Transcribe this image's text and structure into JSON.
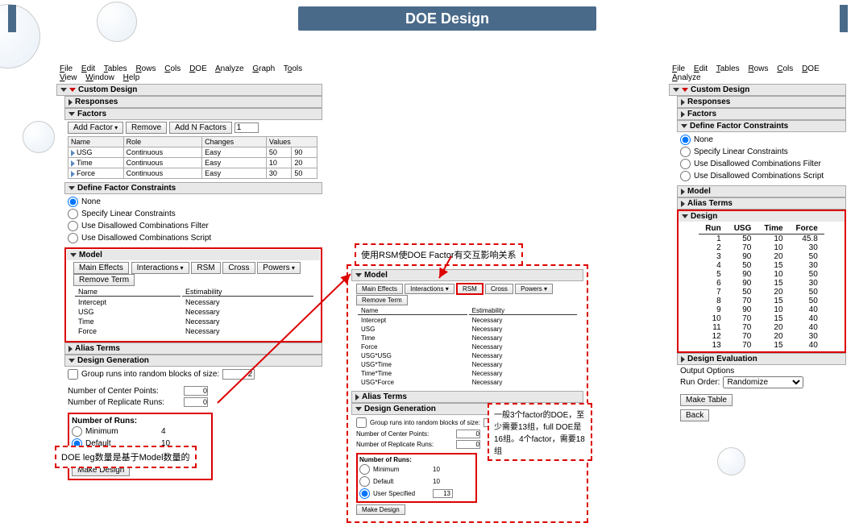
{
  "title": "DOE Design",
  "menu": [
    "File",
    "Edit",
    "Tables",
    "Rows",
    "Cols",
    "DOE",
    "Analyze",
    "Graph",
    "Tools",
    "View",
    "Window",
    "Help"
  ],
  "menu_right": [
    "File",
    "Edit",
    "Tables",
    "Rows",
    "Cols",
    "DOE",
    "Analyze"
  ],
  "sec": {
    "custom_design": "Custom Design",
    "responses": "Responses",
    "factors": "Factors",
    "define_constraints": "Define Factor Constraints",
    "model": "Model",
    "alias": "Alias Terms",
    "design_gen": "Design Generation",
    "design": "Design",
    "design_eval": "Design Evaluation"
  },
  "factors_btns": {
    "add": "Add Factor",
    "remove": "Remove",
    "addn": "Add N Factors",
    "addn_val": "1"
  },
  "factors_cols": [
    "Name",
    "Role",
    "Changes",
    "Values"
  ],
  "factors_rows": [
    {
      "name": "USG",
      "role": "Continuous",
      "changes": "Easy",
      "v1": "50",
      "v2": "90"
    },
    {
      "name": "Time",
      "role": "Continuous",
      "changes": "Easy",
      "v1": "10",
      "v2": "20"
    },
    {
      "name": "Force",
      "role": "Continuous",
      "changes": "Easy",
      "v1": "30",
      "v2": "50"
    }
  ],
  "constraints": {
    "none": "None",
    "linear": "Specify Linear Constraints",
    "filter": "Use Disallowed Combinations Filter",
    "script": "Use Disallowed Combinations Script"
  },
  "model_btns": {
    "main": "Main Effects",
    "inter": "Interactions",
    "rsm": "RSM",
    "cross": "Cross",
    "powers": "Powers",
    "remove": "Remove Term"
  },
  "model_cols": {
    "name": "Name",
    "est": "Estimability"
  },
  "model_rows_left": [
    {
      "name": "Intercept",
      "est": "Necessary"
    },
    {
      "name": "USG",
      "est": "Necessary"
    },
    {
      "name": "Time",
      "est": "Necessary"
    },
    {
      "name": "Force",
      "est": "Necessary"
    }
  ],
  "model_rows_mid": [
    {
      "name": "Intercept",
      "est": "Necessary"
    },
    {
      "name": "USG",
      "est": "Necessary"
    },
    {
      "name": "Time",
      "est": "Necessary"
    },
    {
      "name": "Force",
      "est": "Necessary"
    },
    {
      "name": "USG*USG",
      "est": "Necessary"
    },
    {
      "name": "USG*Time",
      "est": "Necessary"
    },
    {
      "name": "Time*Time",
      "est": "Necessary"
    },
    {
      "name": "USG*Force",
      "est": "Necessary"
    }
  ],
  "design_gen": {
    "group": "Group runs into random blocks of size:",
    "group_val": "2",
    "center": "Number of Center Points:",
    "center_val": "0",
    "replicate": "Number of Replicate Runs:",
    "replicate_val": "0"
  },
  "runs": {
    "title": "Number of Runs:",
    "min": "Minimum",
    "min_v_left": "4",
    "min_v_mid": "10",
    "def": "Default",
    "def_v_left": "10",
    "def_v_mid": "10",
    "user": "User Specified",
    "user_v_left": "10",
    "user_v_mid": "13",
    "make": "Make Design"
  },
  "design_cols": [
    "Run",
    "USG",
    "Time",
    "Force"
  ],
  "design_rows": [
    [
      "1",
      "50",
      "10",
      "45.8"
    ],
    [
      "2",
      "70",
      "10",
      "30"
    ],
    [
      "3",
      "90",
      "20",
      "50"
    ],
    [
      "4",
      "50",
      "15",
      "30"
    ],
    [
      "5",
      "90",
      "10",
      "50"
    ],
    [
      "6",
      "90",
      "15",
      "30"
    ],
    [
      "7",
      "50",
      "20",
      "50"
    ],
    [
      "8",
      "70",
      "15",
      "50"
    ],
    [
      "9",
      "90",
      "10",
      "40"
    ],
    [
      "10",
      "70",
      "15",
      "40"
    ],
    [
      "11",
      "70",
      "20",
      "40"
    ],
    [
      "12",
      "70",
      "20",
      "30"
    ],
    [
      "13",
      "70",
      "15",
      "40"
    ]
  ],
  "output": {
    "opts": "Output Options",
    "run_order": "Run Order:",
    "run_order_val": "Randomize",
    "make_table": "Make Table",
    "back": "Back"
  },
  "callouts": {
    "rsm": "使用RSM使DOE Factor有交互影响关系",
    "legs": "DOE leg数量是基于Model数量的",
    "factors_note": "一般3个factor的DOE，至少需要13组，full DOE是16组。4个factor，需要18组"
  }
}
